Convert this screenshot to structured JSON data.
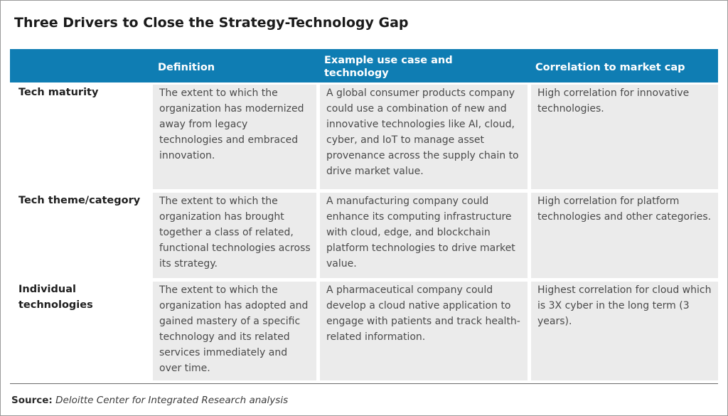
{
  "title": "Three Drivers to Close the Strategy-Technology Gap",
  "table": {
    "headers": {
      "definition": "Definition",
      "example": "Example use case and technology",
      "correlation": "Correlation to market cap"
    },
    "rows": [
      {
        "label": "Tech maturity",
        "definition": "The extent to which the organization has modernized away from legacy technologies and embraced innovation.",
        "example": "A global consumer products company could use a combination of new and innovative technologies like AI, cloud, cyber, and IoT to manage asset provenance across the supply chain to drive market value.",
        "correlation": "High correlation for innovative technologies."
      },
      {
        "label": "Tech theme/category",
        "definition": "The extent to which the organization has brought together a class of related, functional technologies across its strategy.",
        "example": "A manufacturing company could enhance its computing infrastructure with cloud, edge, and blockchain platform technologies to drive market value.",
        "correlation": "High correlation for platform technologies and other categories."
      },
      {
        "label": "Individual technologies",
        "definition": "The extent to which the organization has adopted and gained mastery of a specific technology and its related services immediately and over time.",
        "example": "A pharmaceutical company could develop a cloud native application to engage with patients and track health-related information.",
        "correlation": "Highest correlation for cloud which is 3X cyber in the long term (3 years)."
      }
    ]
  },
  "source": {
    "label": "Source:",
    "text": "Deloitte Center for Integrated Research analysis"
  },
  "colors": {
    "header_band": "#0f7db3",
    "cell_background": "#ebebeb",
    "header_text": "#ffffff"
  }
}
